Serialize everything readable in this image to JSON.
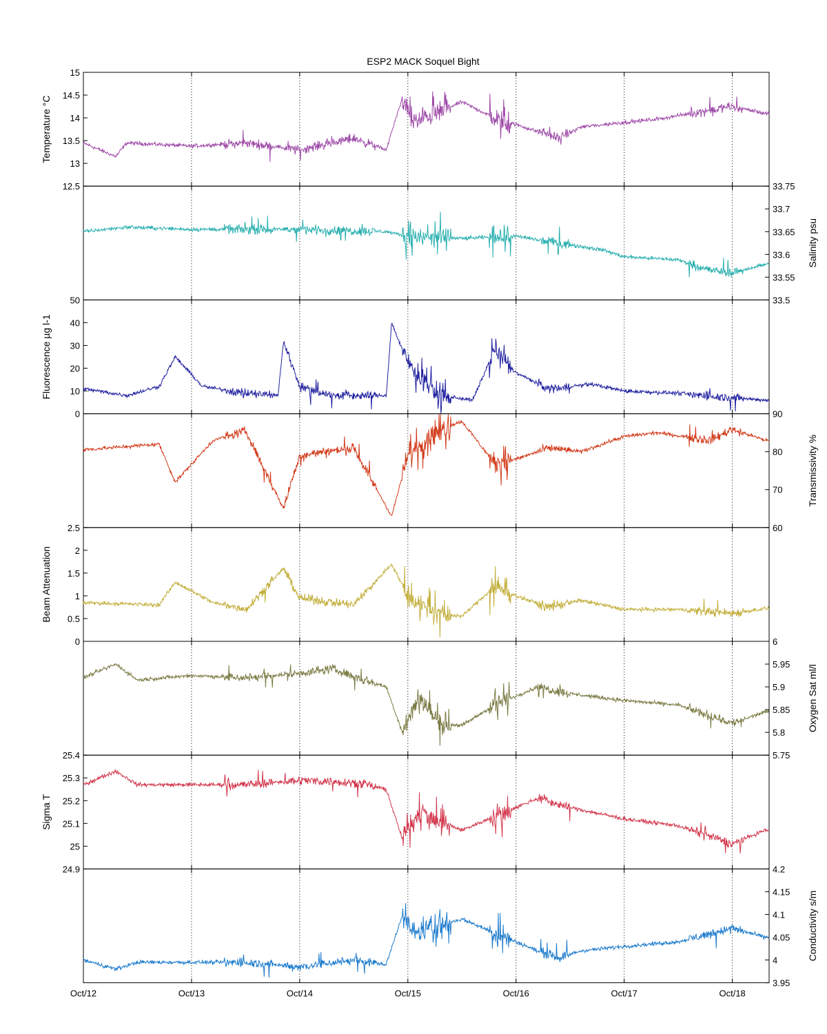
{
  "chart_data": {
    "type": "line",
    "title": "ESP2 MACK  Soquel Bight",
    "x_ticks": [
      "Oct/12",
      "Oct/13",
      "Oct/14",
      "Oct/15",
      "Oct/16",
      "Oct/17",
      "Oct/18"
    ],
    "x_range": [
      "2008-10-12 00:00",
      "2008-10-18 08:00"
    ],
    "grid": "vertical dotted at day ticks",
    "panels": [
      {
        "name": "temperature",
        "ylabel": "Temperature °C",
        "axis_side": "left",
        "ylim": [
          12.5,
          15
        ],
        "yticks": [
          "12.5",
          "13",
          "13.5",
          "14",
          "14.5",
          "15"
        ],
        "color": "#9E4AA8",
        "key_points": [
          [
            0,
            13.45
          ],
          [
            0.15,
            13.3
          ],
          [
            0.3,
            13.15
          ],
          [
            0.4,
            13.45
          ],
          [
            1.0,
            13.38
          ],
          [
            1.5,
            13.45
          ],
          [
            2.0,
            13.3
          ],
          [
            2.5,
            13.55
          ],
          [
            2.8,
            13.3
          ],
          [
            2.95,
            14.45
          ],
          [
            3.05,
            13.9
          ],
          [
            3.5,
            14.35
          ],
          [
            3.8,
            14.0
          ],
          [
            4.2,
            13.7
          ],
          [
            4.4,
            13.55
          ],
          [
            4.6,
            13.8
          ],
          [
            5.0,
            13.9
          ],
          [
            5.3,
            13.97
          ],
          [
            6.0,
            14.25
          ],
          [
            6.3,
            14.1
          ]
        ]
      },
      {
        "name": "salinity",
        "ylabel": "Salinity psu",
        "axis_side": "right",
        "ylim": [
          33.5,
          33.75
        ],
        "yticks": [
          "33.5",
          "33.55",
          "33.6",
          "33.65",
          "33.7",
          "33.75"
        ],
        "color": "#2AAFAF",
        "key_points": [
          [
            0,
            33.65
          ],
          [
            0.4,
            33.66
          ],
          [
            1.0,
            33.655
          ],
          [
            2.0,
            33.655
          ],
          [
            2.8,
            33.65
          ],
          [
            3.0,
            33.64
          ],
          [
            3.5,
            33.635
          ],
          [
            4.0,
            33.64
          ],
          [
            4.4,
            33.625
          ],
          [
            4.8,
            33.61
          ],
          [
            5.0,
            33.595
          ],
          [
            5.5,
            33.588
          ],
          [
            5.8,
            33.565
          ],
          [
            6.0,
            33.56
          ],
          [
            6.3,
            33.578
          ]
        ]
      },
      {
        "name": "fluorescence",
        "ylabel": "Fluorescence µg l-1",
        "axis_side": "left",
        "ylim": [
          0,
          50
        ],
        "yticks": [
          "0",
          "10",
          "20",
          "30",
          "40",
          "50"
        ],
        "color": "#1F1FA0",
        "key_points": [
          [
            0,
            11
          ],
          [
            0.4,
            8
          ],
          [
            0.7,
            12
          ],
          [
            0.85,
            25
          ],
          [
            1.1,
            12
          ],
          [
            1.5,
            9
          ],
          [
            1.8,
            8
          ],
          [
            1.85,
            32
          ],
          [
            2.0,
            12
          ],
          [
            2.3,
            8
          ],
          [
            2.8,
            8
          ],
          [
            2.85,
            40
          ],
          [
            3.0,
            22
          ],
          [
            3.3,
            8
          ],
          [
            3.6,
            6
          ],
          [
            3.8,
            28
          ],
          [
            4.0,
            18
          ],
          [
            4.3,
            11
          ],
          [
            4.7,
            13
          ],
          [
            5.0,
            10
          ],
          [
            5.5,
            9
          ],
          [
            6.0,
            7
          ],
          [
            6.3,
            6
          ]
        ]
      },
      {
        "name": "transmissivity",
        "ylabel": "Transmissivity %",
        "axis_side": "right",
        "ylim": [
          60,
          90
        ],
        "yticks": [
          "60",
          "70",
          "80",
          "90"
        ],
        "color": "#D23A1A",
        "key_points": [
          [
            0,
            80.5
          ],
          [
            0.7,
            82
          ],
          [
            0.85,
            72
          ],
          [
            1.2,
            83
          ],
          [
            1.5,
            85.5
          ],
          [
            1.85,
            65
          ],
          [
            2.0,
            79
          ],
          [
            2.5,
            81
          ],
          [
            2.85,
            63
          ],
          [
            3.0,
            79
          ],
          [
            3.3,
            86
          ],
          [
            3.5,
            88
          ],
          [
            3.8,
            77
          ],
          [
            4.0,
            78
          ],
          [
            4.3,
            81
          ],
          [
            4.6,
            80
          ],
          [
            5.0,
            84
          ],
          [
            5.3,
            85
          ],
          [
            5.8,
            83
          ],
          [
            6.0,
            86
          ],
          [
            6.3,
            83
          ]
        ]
      },
      {
        "name": "beam_attenuation",
        "ylabel": "Beam Attenuation",
        "axis_side": "left",
        "ylim": [
          0,
          2.5
        ],
        "yticks": [
          "0",
          "0.5",
          "1",
          "1.5",
          "2",
          "2.5"
        ],
        "color": "#C2AE3A",
        "key_points": [
          [
            0,
            0.85
          ],
          [
            0.7,
            0.8
          ],
          [
            0.85,
            1.3
          ],
          [
            1.2,
            0.85
          ],
          [
            1.5,
            0.7
          ],
          [
            1.85,
            1.6
          ],
          [
            2.0,
            0.95
          ],
          [
            2.5,
            0.8
          ],
          [
            2.85,
            1.7
          ],
          [
            3.0,
            1.0
          ],
          [
            3.3,
            0.6
          ],
          [
            3.5,
            0.55
          ],
          [
            3.8,
            1.2
          ],
          [
            4.0,
            1.0
          ],
          [
            4.3,
            0.75
          ],
          [
            4.6,
            0.9
          ],
          [
            5.0,
            0.7
          ],
          [
            5.5,
            0.7
          ],
          [
            6.0,
            0.62
          ],
          [
            6.3,
            0.72
          ]
        ]
      },
      {
        "name": "oxygen_sat",
        "ylabel": "Oxygen Sat ml/l",
        "axis_side": "right",
        "ylim": [
          5.75,
          6
        ],
        "yticks": [
          "5.75",
          "5.8",
          "5.85",
          "5.9",
          "5.95",
          "6"
        ],
        "color": "#7A7A44",
        "key_points": [
          [
            0,
            5.92
          ],
          [
            0.3,
            5.95
          ],
          [
            0.5,
            5.915
          ],
          [
            1.0,
            5.925
          ],
          [
            1.5,
            5.92
          ],
          [
            2.0,
            5.93
          ],
          [
            2.3,
            5.94
          ],
          [
            2.6,
            5.915
          ],
          [
            2.8,
            5.9
          ],
          [
            2.95,
            5.8
          ],
          [
            3.1,
            5.88
          ],
          [
            3.3,
            5.82
          ],
          [
            3.5,
            5.815
          ],
          [
            3.8,
            5.86
          ],
          [
            4.2,
            5.9
          ],
          [
            4.5,
            5.885
          ],
          [
            5.0,
            5.87
          ],
          [
            5.5,
            5.86
          ],
          [
            6.0,
            5.82
          ],
          [
            6.3,
            5.845
          ]
        ]
      },
      {
        "name": "sigma_t",
        "ylabel": "Sigma T",
        "axis_side": "left",
        "ylim": [
          24.9,
          25.4
        ],
        "yticks": [
          "24.9",
          "25",
          "25.1",
          "25.2",
          "25.3",
          "25.4"
        ],
        "color": "#D2344A",
        "key_points": [
          [
            0,
            25.27
          ],
          [
            0.3,
            25.33
          ],
          [
            0.5,
            25.27
          ],
          [
            1.0,
            25.27
          ],
          [
            1.5,
            25.27
          ],
          [
            2.0,
            25.29
          ],
          [
            2.5,
            25.28
          ],
          [
            2.8,
            25.25
          ],
          [
            2.95,
            25.03
          ],
          [
            3.1,
            25.15
          ],
          [
            3.5,
            25.07
          ],
          [
            3.8,
            25.13
          ],
          [
            4.2,
            25.21
          ],
          [
            4.5,
            25.17
          ],
          [
            5.0,
            25.12
          ],
          [
            5.5,
            25.09
          ],
          [
            6.0,
            25.01
          ],
          [
            6.3,
            25.07
          ]
        ]
      },
      {
        "name": "conductivity",
        "ylabel": "Conductivity s/m",
        "axis_side": "right",
        "ylim": [
          3.95,
          4.2
        ],
        "yticks": [
          "3.95",
          "4",
          "4.05",
          "4.1",
          "4.15",
          "4.2"
        ],
        "color": "#1B7ACC",
        "key_points": [
          [
            0,
            4.0
          ],
          [
            0.3,
            3.98
          ],
          [
            0.5,
            3.995
          ],
          [
            1.0,
            3.995
          ],
          [
            1.5,
            3.995
          ],
          [
            2.0,
            3.985
          ],
          [
            2.5,
            4.0
          ],
          [
            2.8,
            3.99
          ],
          [
            2.95,
            4.1
          ],
          [
            3.05,
            4.06
          ],
          [
            3.5,
            4.09
          ],
          [
            3.8,
            4.06
          ],
          [
            4.2,
            4.02
          ],
          [
            4.4,
            4.005
          ],
          [
            4.6,
            4.02
          ],
          [
            5.0,
            4.03
          ],
          [
            5.5,
            4.04
          ],
          [
            6.0,
            4.07
          ],
          [
            6.3,
            4.05
          ]
        ]
      }
    ]
  }
}
